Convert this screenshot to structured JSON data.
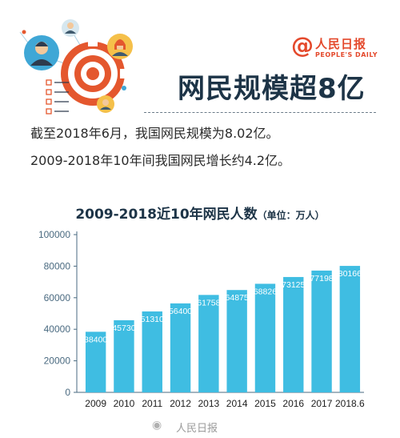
{
  "brand": {
    "cn": "人民日报",
    "en": "PEOPLE'S DAILY"
  },
  "headline": "网民规模超8亿",
  "intro": [
    "截至2018年6月，我国网民规模为8.02亿。",
    "2009-2018年10年间我国网民增长约4.2亿。"
  ],
  "chart_title": "2009-2018近10年网民人数",
  "chart_unit": "（单位：万人）",
  "footer": "人民日报",
  "colors": {
    "bar": "#3fbde2",
    "title": "#1d3447",
    "accent": "#e4492c",
    "axis": "#4a6a80"
  },
  "chart_data": {
    "type": "bar",
    "title": "2009-2018近10年网民人数",
    "unit": "（单位：万人）",
    "categories": [
      "2009",
      "2010",
      "2011",
      "2012",
      "2013",
      "2014",
      "2015",
      "2016",
      "2017",
      "2018.6"
    ],
    "values": [
      38400,
      45730,
      51310,
      56400,
      61758,
      64875,
      68826,
      73125,
      77198,
      80166
    ],
    "ylim": [
      0,
      100000
    ],
    "yticks": [
      0,
      20000,
      40000,
      60000,
      80000,
      100000
    ],
    "grid": false,
    "legend": "none"
  }
}
